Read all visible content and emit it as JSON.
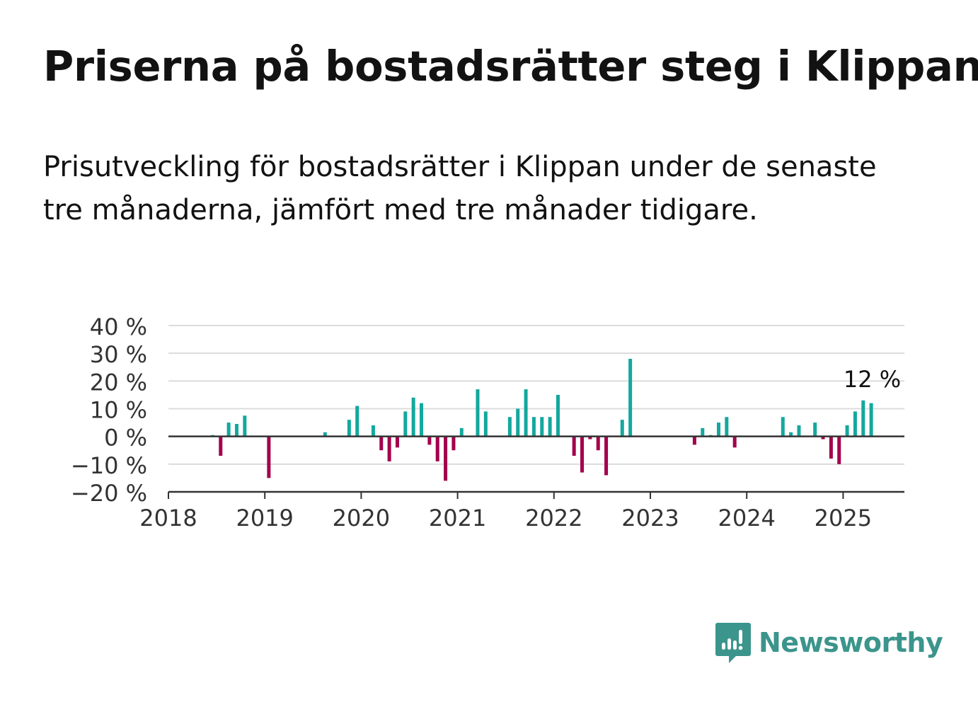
{
  "header": {
    "title": "Priserna på bostadsrätter steg i Klippan",
    "subtitle": "Prisutveckling för bostadsrätter i Klippan under de senaste tre månaderna, jämfört med tre månader tidigare."
  },
  "brand": {
    "name": "Newsworthy",
    "icon": "chart-bubble-icon",
    "color": "#3b958c"
  },
  "colors": {
    "positive": "#13a89e",
    "negative": "#a3004c",
    "grid": "#dcdcdc",
    "axis": "#333333",
    "text": "#333333"
  },
  "chart_data": {
    "type": "bar",
    "title": "Priserna på bostadsrätter steg i Klippan",
    "xlabel": "",
    "ylabel": "",
    "ylim": [
      -20,
      40
    ],
    "yticks": [
      -20,
      -10,
      0,
      10,
      20,
      30,
      40
    ],
    "ytick_labels": [
      "−20 %",
      "−10 %",
      "0 %",
      "10 %",
      "20 %",
      "30 %",
      "40 %"
    ],
    "xlim": [
      "2018-01",
      "2025-08"
    ],
    "xticks": [
      "2018",
      "2019",
      "2020",
      "2021",
      "2022",
      "2023",
      "2024",
      "2025"
    ],
    "grid": true,
    "legend": "none",
    "annotation": {
      "month": "2025-04",
      "text": "12 %"
    },
    "values": [
      {
        "month": "2018-06",
        "value": 0.5
      },
      {
        "month": "2018-07",
        "value": -7
      },
      {
        "month": "2018-08",
        "value": 5
      },
      {
        "month": "2018-09",
        "value": 4.5
      },
      {
        "month": "2018-10",
        "value": 7.5
      },
      {
        "month": "2019-01",
        "value": -15
      },
      {
        "month": "2019-08",
        "value": 1.5
      },
      {
        "month": "2019-11",
        "value": 6
      },
      {
        "month": "2019-12",
        "value": 11
      },
      {
        "month": "2020-02",
        "value": 4
      },
      {
        "month": "2020-03",
        "value": -5
      },
      {
        "month": "2020-04",
        "value": -9
      },
      {
        "month": "2020-05",
        "value": -4
      },
      {
        "month": "2020-06",
        "value": 9
      },
      {
        "month": "2020-07",
        "value": 14
      },
      {
        "month": "2020-08",
        "value": 12
      },
      {
        "month": "2020-09",
        "value": -3
      },
      {
        "month": "2020-10",
        "value": -9
      },
      {
        "month": "2020-11",
        "value": -16
      },
      {
        "month": "2020-12",
        "value": -5
      },
      {
        "month": "2021-01",
        "value": 3
      },
      {
        "month": "2021-03",
        "value": 17
      },
      {
        "month": "2021-04",
        "value": 9
      },
      {
        "month": "2021-07",
        "value": 7
      },
      {
        "month": "2021-08",
        "value": 10
      },
      {
        "month": "2021-09",
        "value": 17
      },
      {
        "month": "2021-10",
        "value": 7
      },
      {
        "month": "2021-11",
        "value": 7
      },
      {
        "month": "2021-12",
        "value": 7
      },
      {
        "month": "2022-01",
        "value": 15
      },
      {
        "month": "2022-03",
        "value": -7
      },
      {
        "month": "2022-04",
        "value": -13
      },
      {
        "month": "2022-05",
        "value": -1
      },
      {
        "month": "2022-06",
        "value": -5
      },
      {
        "month": "2022-07",
        "value": -14
      },
      {
        "month": "2022-09",
        "value": 6
      },
      {
        "month": "2022-10",
        "value": 28
      },
      {
        "month": "2023-06",
        "value": -3
      },
      {
        "month": "2023-07",
        "value": 3
      },
      {
        "month": "2023-08",
        "value": 0.5
      },
      {
        "month": "2023-09",
        "value": 5
      },
      {
        "month": "2023-10",
        "value": 7
      },
      {
        "month": "2023-11",
        "value": -4
      },
      {
        "month": "2024-05",
        "value": 7
      },
      {
        "month": "2024-06",
        "value": 1.5
      },
      {
        "month": "2024-07",
        "value": 4
      },
      {
        "month": "2024-09",
        "value": 5
      },
      {
        "month": "2024-10",
        "value": -1
      },
      {
        "month": "2024-11",
        "value": -8
      },
      {
        "month": "2024-12",
        "value": -10
      },
      {
        "month": "2025-01",
        "value": 4
      },
      {
        "month": "2025-02",
        "value": 9
      },
      {
        "month": "2025-03",
        "value": 13
      },
      {
        "month": "2025-04",
        "value": 12
      }
    ]
  }
}
